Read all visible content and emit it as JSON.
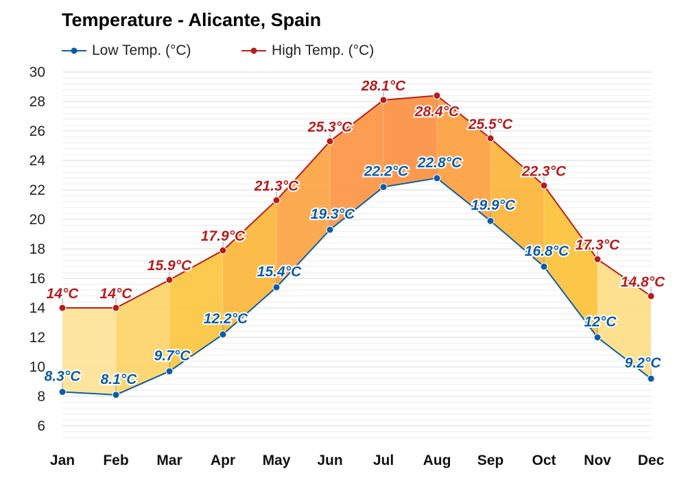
{
  "chart_data": {
    "type": "line",
    "title": "Temperature - Alicante, Spain",
    "categories": [
      "Jan",
      "Feb",
      "Mar",
      "Apr",
      "May",
      "Jun",
      "Jul",
      "Aug",
      "Sep",
      "Oct",
      "Nov",
      "Dec"
    ],
    "series": [
      {
        "name": "Low Temp. (°C)",
        "color": "#0b5ca8",
        "values": [
          8.3,
          8.1,
          9.7,
          12.2,
          15.4,
          19.3,
          22.2,
          22.8,
          19.9,
          16.8,
          12,
          9.2
        ],
        "labels": [
          "8.3°C",
          "8.1°C",
          "9.7°C",
          "12.2°C",
          "15.4°C",
          "19.3°C",
          "22.2°C",
          "22.8°C",
          "19.9°C",
          "16.8°C",
          "12°C",
          "9.2°C"
        ]
      },
      {
        "name": "High Temp. (°C)",
        "color": "#b71c1c",
        "values": [
          14,
          14,
          15.9,
          17.9,
          21.3,
          25.3,
          28.1,
          28.4,
          25.5,
          22.3,
          17.3,
          14.8
        ],
        "labels": [
          "14°C",
          "14°C",
          "15.9°C",
          "17.9°C",
          "21.3°C",
          "25.3°C",
          "28.1°C",
          "28.4°C",
          "25.5°C",
          "22.3°C",
          "17.3°C",
          "14.8°C"
        ]
      }
    ],
    "ylim": [
      5,
      30
    ],
    "yticks": [
      6,
      8,
      10,
      12,
      14,
      16,
      18,
      20,
      22,
      24,
      26,
      28,
      30
    ],
    "grid": true,
    "legend": "top-left",
    "fill_between": true,
    "fill_colors": [
      "#fde49a",
      "#fdd56c",
      "#fcc746",
      "#fcb840",
      "#fca64a",
      "#fc984a",
      "#fc9448",
      "#fca244",
      "#fcb63e",
      "#fcc43e",
      "#fddf8a"
    ]
  }
}
